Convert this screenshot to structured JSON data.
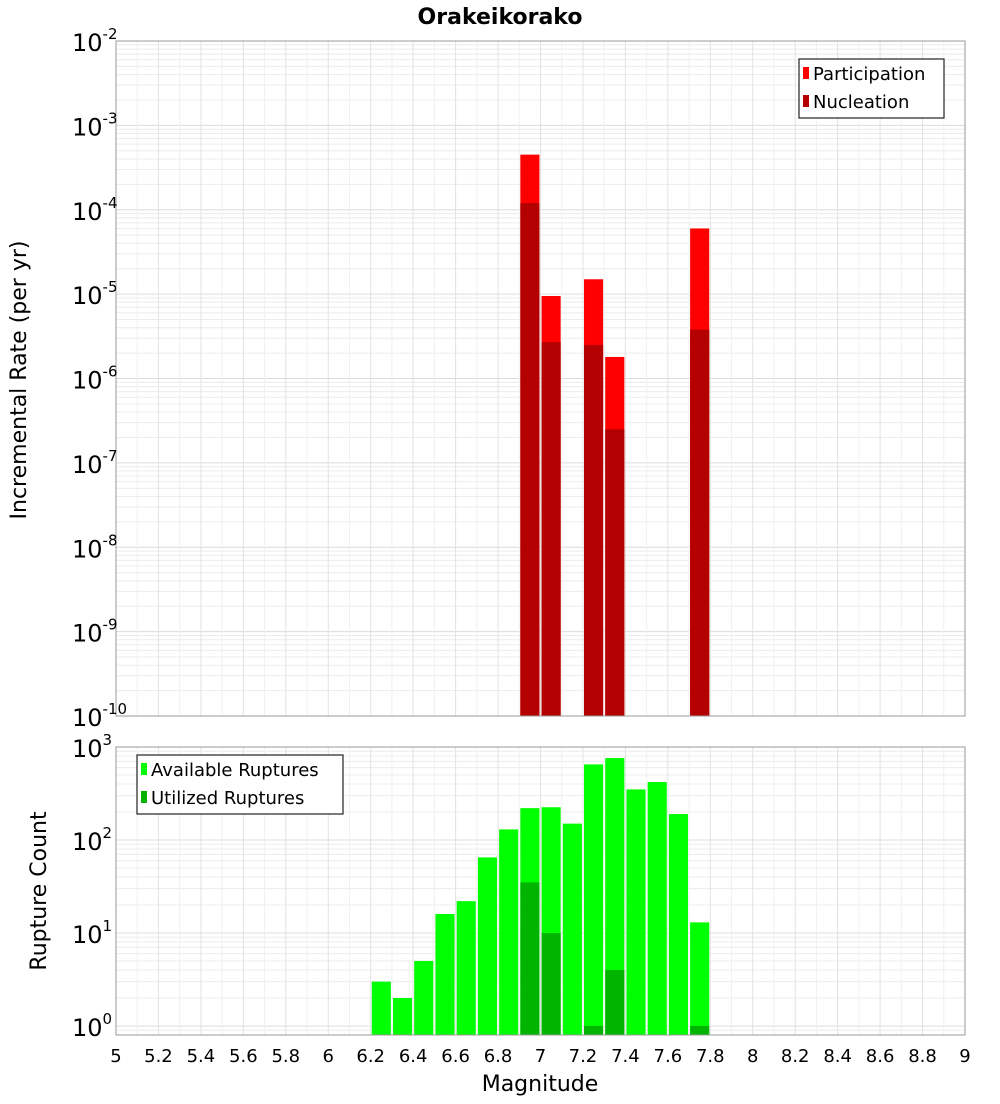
{
  "chart_data": [
    {
      "type": "bar",
      "title": "Orakeikorako",
      "ylabel": "Incremental Rate (per yr)",
      "xlabel": "",
      "yscale": "log",
      "ylim": [
        1e-10,
        0.01
      ],
      "xlim": [
        5,
        9
      ],
      "bar_width": 0.09,
      "grid": true,
      "legend_position": "top-right",
      "legend": [
        "Participation",
        "Nucleation"
      ],
      "colors": {
        "Participation": "#ff0000",
        "Nucleation": "#b40000"
      },
      "series": [
        {
          "name": "Participation",
          "x": [
            6.95,
            7.05,
            7.25,
            7.35,
            7.75
          ],
          "values": [
            0.00045,
            9.5e-06,
            1.5e-05,
            1.8e-06,
            6e-05
          ]
        },
        {
          "name": "Nucleation",
          "x": [
            6.95,
            7.05,
            7.25,
            7.35,
            7.75
          ],
          "values": [
            0.00012,
            2.7e-06,
            2.5e-06,
            2.5e-07,
            3.8e-06
          ]
        }
      ],
      "ytick_exponents": [
        "-10",
        "-9",
        "-8",
        "-7",
        "-6",
        "-5",
        "-4",
        "-3",
        "-2"
      ]
    },
    {
      "type": "bar",
      "title": "",
      "ylabel": "Rupture Count",
      "xlabel": "Magnitude",
      "yscale": "log",
      "ylim": [
        0.8,
        1000
      ],
      "xlim": [
        5,
        9
      ],
      "bar_width": 0.09,
      "grid": true,
      "legend_position": "top-left",
      "legend": [
        "Available Ruptures",
        "Utilized Ruptures"
      ],
      "colors": {
        "Available Ruptures": "#00ff00",
        "Utilized Ruptures": "#00b400"
      },
      "series": [
        {
          "name": "Available Ruptures",
          "x": [
            6.25,
            6.35,
            6.45,
            6.55,
            6.65,
            6.75,
            6.85,
            6.95,
            7.05,
            7.15,
            7.25,
            7.35,
            7.45,
            7.55,
            7.65,
            7.75
          ],
          "values": [
            3,
            2,
            5,
            16,
            22,
            65,
            130,
            220,
            225,
            150,
            650,
            760,
            350,
            420,
            190,
            13
          ]
        },
        {
          "name": "Utilized Ruptures",
          "x": [
            6.95,
            7.05,
            7.25,
            7.35,
            7.75
          ],
          "values": [
            35,
            10,
            1,
            4,
            1
          ]
        }
      ],
      "ytick_exponents": [
        "0",
        "1",
        "2",
        "3"
      ],
      "xticks": [
        "5",
        "5.2",
        "5.4",
        "5.6",
        "5.8",
        "6",
        "6.2",
        "6.4",
        "6.6",
        "6.8",
        "7",
        "7.2",
        "7.4",
        "7.6",
        "7.8",
        "8",
        "8.2",
        "8.4",
        "8.6",
        "8.8",
        "9"
      ]
    }
  ]
}
